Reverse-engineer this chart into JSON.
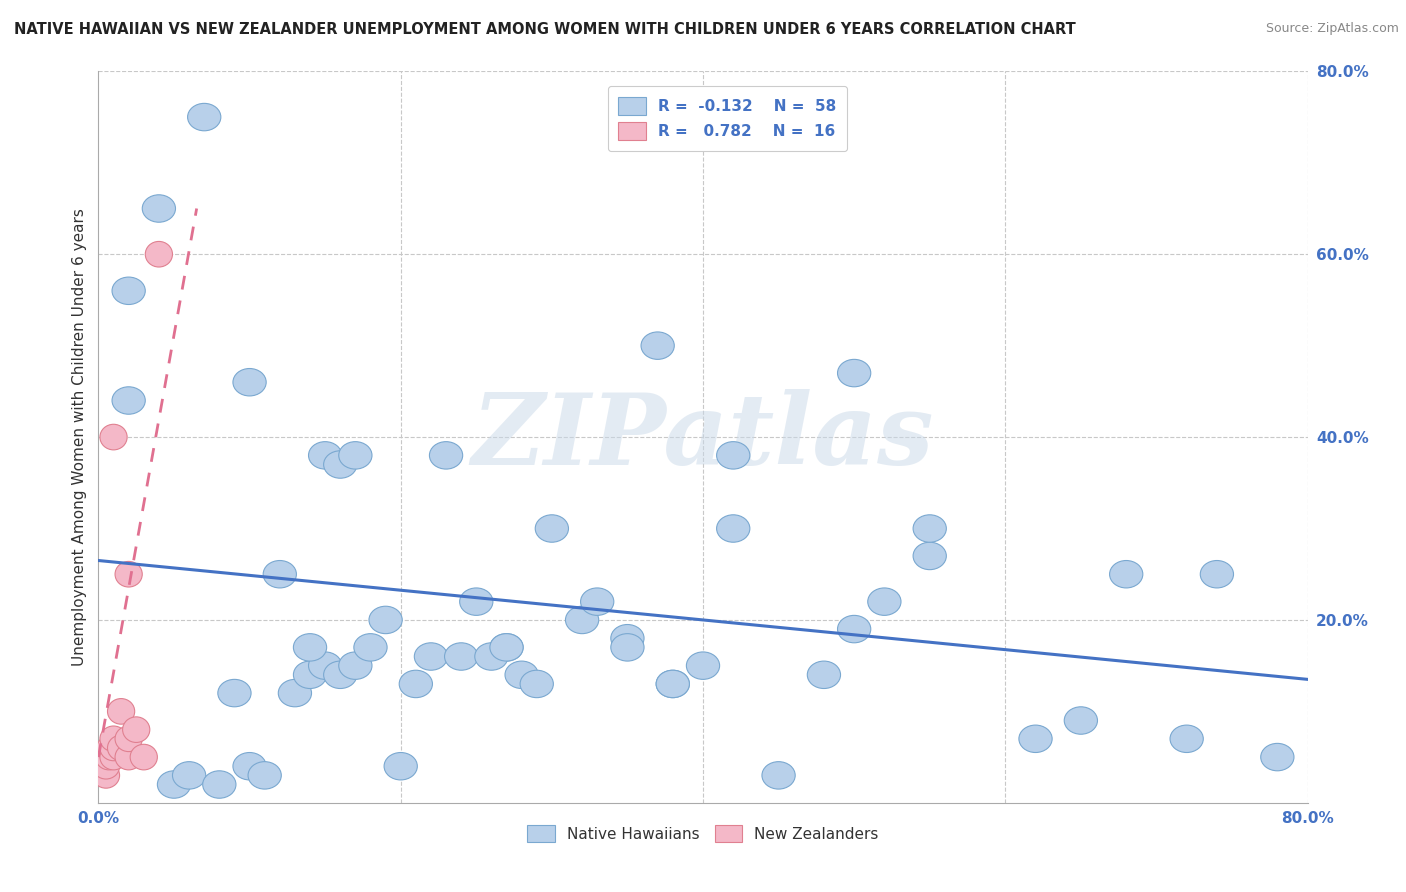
{
  "title": "NATIVE HAWAIIAN VS NEW ZEALANDER UNEMPLOYMENT AMONG WOMEN WITH CHILDREN UNDER 6 YEARS CORRELATION CHART",
  "source": "Source: ZipAtlas.com",
  "ylabel": "Unemployment Among Women with Children Under 6 years",
  "xlim": [
    0.0,
    0.8
  ],
  "ylim": [
    0.0,
    0.8
  ],
  "xtick_labels_edge": [
    "0.0%",
    "80.0%"
  ],
  "xtick_vals_edge": [
    0.0,
    0.8
  ],
  "ytick_labels": [
    "20.0%",
    "40.0%",
    "60.0%",
    "80.0%"
  ],
  "ytick_vals": [
    0.2,
    0.4,
    0.6,
    0.8
  ],
  "grid_ytick_vals": [
    0.2,
    0.4,
    0.6,
    0.8
  ],
  "grid_xtick_vals": [
    0.2,
    0.4,
    0.6,
    0.8
  ],
  "blue_scatter_x": [
    0.02,
    0.02,
    0.04,
    0.05,
    0.06,
    0.07,
    0.08,
    0.09,
    0.1,
    0.11,
    0.12,
    0.13,
    0.14,
    0.15,
    0.15,
    0.16,
    0.17,
    0.18,
    0.19,
    0.2,
    0.21,
    0.22,
    0.23,
    0.24,
    0.25,
    0.27,
    0.28,
    0.29,
    0.3,
    0.32,
    0.33,
    0.35,
    0.37,
    0.4,
    0.42,
    0.45,
    0.48,
    0.5,
    0.52,
    0.55,
    0.38,
    0.5,
    0.55,
    0.62,
    0.65,
    0.68,
    0.72,
    0.74,
    0.78,
    0.1,
    0.14,
    0.16,
    0.17,
    0.26,
    0.27,
    0.35,
    0.38,
    0.42
  ],
  "blue_scatter_y": [
    0.56,
    0.44,
    0.65,
    0.02,
    0.03,
    0.75,
    0.02,
    0.12,
    0.04,
    0.03,
    0.25,
    0.12,
    0.14,
    0.15,
    0.38,
    0.14,
    0.15,
    0.17,
    0.2,
    0.04,
    0.13,
    0.16,
    0.38,
    0.16,
    0.22,
    0.17,
    0.14,
    0.13,
    0.3,
    0.2,
    0.22,
    0.18,
    0.5,
    0.15,
    0.3,
    0.03,
    0.14,
    0.19,
    0.22,
    0.27,
    0.13,
    0.47,
    0.3,
    0.07,
    0.09,
    0.25,
    0.07,
    0.25,
    0.05,
    0.46,
    0.17,
    0.37,
    0.38,
    0.16,
    0.17,
    0.17,
    0.13,
    0.38
  ],
  "pink_scatter_x": [
    0.005,
    0.005,
    0.007,
    0.008,
    0.01,
    0.01,
    0.01,
    0.01,
    0.015,
    0.015,
    0.02,
    0.02,
    0.02,
    0.025,
    0.03,
    0.04
  ],
  "pink_scatter_y": [
    0.03,
    0.04,
    0.05,
    0.06,
    0.05,
    0.06,
    0.07,
    0.4,
    0.06,
    0.1,
    0.05,
    0.07,
    0.25,
    0.08,
    0.05,
    0.6
  ],
  "blue_line_x": [
    0.0,
    0.8
  ],
  "blue_line_y": [
    0.265,
    0.135
  ],
  "pink_line_x": [
    0.0,
    0.065
  ],
  "pink_line_y": [
    0.05,
    0.65
  ],
  "legend_r_blue": "-0.132",
  "legend_n_blue": "58",
  "legend_r_pink": "0.782",
  "legend_n_pink": "16",
  "blue_fill_color": "#b8d0ea",
  "blue_edge_color": "#7aa8d0",
  "pink_fill_color": "#f4b8c8",
  "pink_edge_color": "#e08090",
  "blue_line_color": "#4472c4",
  "pink_line_color": "#e07090",
  "watermark_text": "ZIPatlas",
  "background_color": "#ffffff",
  "grid_color": "#c8c8c8",
  "legend_r_color": "#4472c4",
  "legend_n_color": "#4472c4"
}
